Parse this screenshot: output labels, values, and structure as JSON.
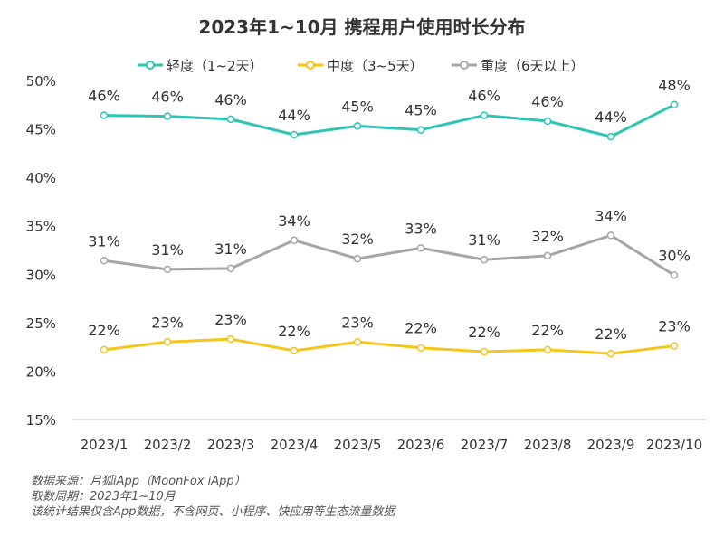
{
  "chart_data": {
    "type": "line",
    "title": "2023年1~10月 携程用户使用时长分布",
    "categories": [
      "2023/1",
      "2023/2",
      "2023/3",
      "2023/4",
      "2023/5",
      "2023/6",
      "2023/7",
      "2023/8",
      "2023/9",
      "2023/10"
    ],
    "ylim": [
      15,
      50
    ],
    "yticks": [
      15,
      20,
      25,
      30,
      35,
      40,
      45,
      50
    ],
    "ytick_suffix": "%",
    "grid": false,
    "legend_position": "top",
    "series": [
      {
        "name": "轻度（1~2天）",
        "color": "#2ec4b6",
        "values": [
          46.4,
          46.3,
          46.0,
          44.4,
          45.3,
          44.9,
          46.4,
          45.8,
          44.2,
          47.5
        ],
        "labels": [
          "46%",
          "46%",
          "46%",
          "44%",
          "45%",
          "45%",
          "46%",
          "46%",
          "44%",
          "48%"
        ]
      },
      {
        "name": "中度（3~5天）",
        "color": "#f5c518",
        "values": [
          22.2,
          23.0,
          23.3,
          22.1,
          23.0,
          22.4,
          22.0,
          22.2,
          21.8,
          22.6
        ],
        "labels": [
          "22%",
          "23%",
          "23%",
          "22%",
          "23%",
          "22%",
          "22%",
          "22%",
          "22%",
          "23%"
        ]
      },
      {
        "name": "重度（6天以上）",
        "color": "#a6a6a6",
        "values": [
          31.4,
          30.5,
          30.6,
          33.5,
          31.6,
          32.7,
          31.5,
          31.9,
          34.0,
          29.9
        ],
        "labels": [
          "31%",
          "31%",
          "31%",
          "34%",
          "32%",
          "33%",
          "31%",
          "32%",
          "34%",
          "30%"
        ]
      }
    ]
  },
  "notes": {
    "source": "数据来源：月狐iApp（MoonFox iApp）",
    "period": "取数周期：2023年1~10月",
    "scope": "该统计结果仅含App数据，不含网页、小程序、快应用等生态流量数据"
  }
}
